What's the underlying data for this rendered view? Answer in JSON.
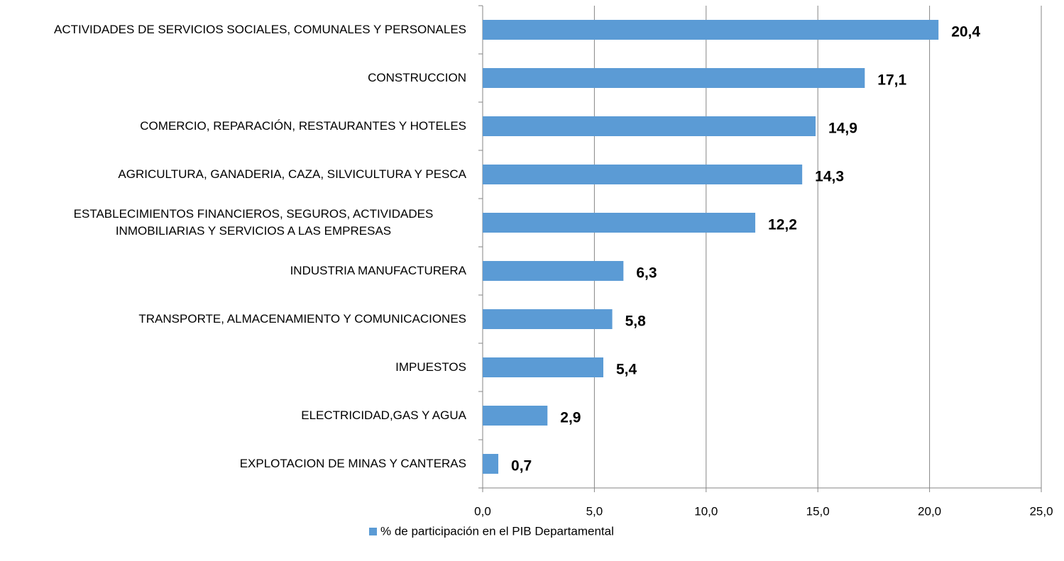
{
  "chart_data": {
    "type": "hbar",
    "categories": [
      "ACTIVIDADES DE SERVICIOS SOCIALES, COMUNALES Y PERSONALES",
      "CONSTRUCCION",
      "COMERCIO, REPARACIÓN, RESTAURANTES Y HOTELES",
      "AGRICULTURA, GANADERIA, CAZA, SILVICULTURA Y PESCA",
      "ESTABLECIMIENTOS FINANCIEROS, SEGUROS, ACTIVIDADES INMOBILIARIAS Y SERVICIOS A LAS EMPRESAS",
      "INDUSTRIA MANUFACTURERA",
      "TRANSPORTE, ALMACENAMIENTO Y COMUNICACIONES",
      "IMPUESTOS",
      "ELECTRICIDAD,GAS Y AGUA",
      "EXPLOTACION DE MINAS Y CANTERAS"
    ],
    "series": [
      {
        "name": "% de participación en el PIB Departamental",
        "color": "#5b9bd5",
        "values": [
          20.4,
          17.1,
          14.9,
          14.3,
          12.2,
          6.3,
          5.8,
          5.4,
          2.9,
          0.7
        ],
        "value_labels": [
          "20,4",
          "17,1",
          "14,9",
          "14,3",
          "12,2",
          "6,3",
          "5,8",
          "5,4",
          "2,9",
          "0,7"
        ]
      }
    ],
    "xlim": [
      0,
      25
    ],
    "xticks": [
      {
        "value": 0,
        "label": "0,0"
      },
      {
        "value": 5,
        "label": "5,0"
      },
      {
        "value": 10,
        "label": "10,0"
      },
      {
        "value": 15,
        "label": "15,0"
      },
      {
        "value": 20,
        "label": "20,0"
      },
      {
        "value": 25,
        "label": "25,0"
      }
    ],
    "grid": true,
    "legend": "bottom"
  }
}
